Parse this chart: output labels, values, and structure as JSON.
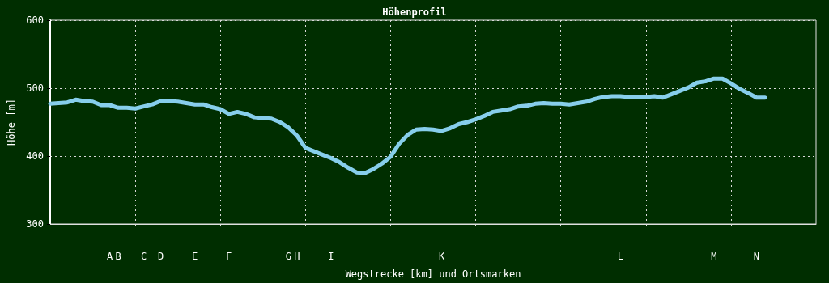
{
  "chart_data": {
    "type": "line",
    "title": "Höhenprofil",
    "xlabel": "Wegstrecke [km] und Ortsmarken",
    "ylabel": "Höhe [m]",
    "categories": [
      null,
      null,
      null,
      null,
      null,
      null,
      null,
      "A",
      "B",
      null,
      null,
      "C",
      null,
      "D",
      null,
      null,
      null,
      "E",
      null,
      null,
      null,
      "F",
      null,
      null,
      null,
      null,
      null,
      null,
      "G",
      "H",
      null,
      null,
      null,
      "I",
      null,
      null,
      null,
      null,
      null,
      null,
      null,
      null,
      null,
      null,
      null,
      null,
      "K",
      null,
      null,
      null,
      null,
      null,
      null,
      null,
      null,
      null,
      null,
      null,
      null,
      null,
      null,
      null,
      null,
      null,
      null,
      null,
      null,
      "L",
      null,
      null,
      null,
      null,
      null,
      null,
      null,
      null,
      null,
      null,
      "M",
      null,
      null,
      null,
      null,
      "N",
      null,
      null,
      null,
      null,
      null,
      null,
      null
    ],
    "series": [
      {
        "color": "#87ceeb",
        "values": [
          477,
          478,
          479,
          483,
          481,
          480,
          475,
          475,
          471,
          471,
          470,
          473,
          476,
          481,
          481,
          480,
          478,
          476,
          476,
          472,
          469,
          462,
          465,
          462,
          457,
          456,
          455,
          450,
          442,
          430,
          412,
          407,
          402,
          397,
          391,
          383,
          376,
          375,
          381,
          389,
          399,
          418,
          431,
          439,
          440,
          439,
          437,
          441,
          447,
          450,
          454,
          459,
          465,
          467,
          469,
          473,
          474,
          477,
          478,
          477,
          477,
          476,
          478,
          480,
          484,
          487,
          488,
          488,
          487,
          487,
          487,
          488,
          486,
          491,
          496,
          501,
          508,
          510,
          514,
          514,
          507,
          499,
          493,
          486,
          486,
          null,
          null,
          null,
          null,
          null,
          null
        ]
      }
    ],
    "ylim": [
      300,
      600
    ],
    "yticks": [
      300,
      400,
      500,
      600
    ],
    "grid": true,
    "marker": "none",
    "line_style": "solid"
  }
}
